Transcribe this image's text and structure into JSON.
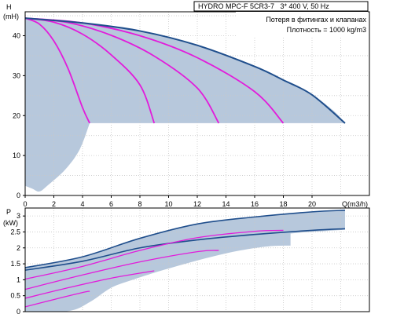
{
  "chart_data": [
    {
      "type": "line",
      "title": "HYDRO MPC-F 5CR3-7   3* 400 V, 50 Hz",
      "notes": [
        "Потеря в фитингах и клапанах",
        "Плотность = 1000 kg/m3"
      ],
      "ylabel": "H",
      "yunit": "(mH)",
      "xlabel": "Q(m3/h)",
      "xlim": [
        0,
        24
      ],
      "ylim": [
        0,
        46
      ],
      "xticks": [
        0,
        2,
        4,
        6,
        8,
        10,
        12,
        14,
        16,
        18,
        20
      ],
      "yticks": [
        0,
        10,
        20,
        30,
        40
      ],
      "grid": true,
      "colors": {
        "envelope_fill": "#b7c8dc",
        "max_curve": "#1f4e8c",
        "pump_curves": "#e21cdb"
      },
      "envelope": {
        "upper": [
          [
            0,
            44.4
          ],
          [
            4,
            43.2
          ],
          [
            8,
            41.2
          ],
          [
            12,
            37.6
          ],
          [
            16,
            32.3
          ],
          [
            18,
            28.9
          ],
          [
            20,
            25.2
          ],
          [
            21.5,
            21.2
          ],
          [
            22.3,
            18.1
          ]
        ],
        "lower": [
          [
            0,
            2.4
          ],
          [
            0.5,
            1.7
          ],
          [
            1,
            1.0
          ],
          [
            1.6,
            2.6
          ],
          [
            2.8,
            6.5
          ],
          [
            3.8,
            11.5
          ],
          [
            4.5,
            18.1
          ]
        ],
        "min_head": 18.1
      },
      "series": [
        {
          "x": [
            0,
            1,
            2,
            3,
            4,
            4.5
          ],
          "values": [
            44.4,
            42.9,
            38.7,
            31.7,
            22.0,
            18.1
          ]
        },
        {
          "x": [
            0,
            2,
            4,
            6,
            8,
            9
          ],
          "values": [
            44.4,
            43.4,
            40.4,
            35.2,
            27.7,
            18.1
          ]
        },
        {
          "x": [
            0,
            3,
            6,
            9,
            12,
            13.5
          ],
          "values": [
            44.4,
            43.3,
            40.1,
            34.9,
            26.9,
            18.1
          ]
        },
        {
          "x": [
            0,
            4,
            8,
            12,
            16,
            18
          ],
          "values": [
            44.4,
            43.2,
            40.0,
            34.5,
            26.0,
            18.1
          ]
        },
        {
          "x": [
            0,
            4,
            8,
            12,
            16,
            18,
            20,
            22.3
          ],
          "values": [
            44.4,
            43.2,
            41.2,
            37.6,
            32.3,
            28.9,
            25.2,
            18.1
          ]
        }
      ]
    },
    {
      "type": "line",
      "ylabel": "P",
      "yunit": "(kW)",
      "xlim": [
        0,
        24
      ],
      "ylim": [
        0,
        3.25
      ],
      "yticks": [
        0,
        0.5,
        1,
        1.5,
        2,
        2.5,
        3
      ],
      "grid": true,
      "bands": [
        {
          "upper": [
            [
              0,
              1.38
            ],
            [
              2,
              1.53
            ],
            [
              4,
              1.72
            ],
            [
              6,
              1.98
            ],
            [
              8,
              2.3
            ],
            [
              10,
              2.55
            ],
            [
              12,
              2.75
            ],
            [
              14,
              2.87
            ],
            [
              16,
              2.97
            ],
            [
              18,
              3.05
            ],
            [
              20,
              3.13
            ],
            [
              22,
              3.17
            ],
            [
              22.3,
              3.18
            ]
          ],
          "lower": [
            [
              0,
              0.02
            ],
            [
              1,
              0.02
            ],
            [
              2.5,
              0.1
            ],
            [
              4,
              0.5
            ],
            [
              5.5,
              1.02
            ],
            [
              7,
              1.3
            ],
            [
              9,
              1.55
            ],
            [
              11,
              1.82
            ],
            [
              13,
              2.05
            ],
            [
              15,
              2.23
            ],
            [
              17,
              2.37
            ],
            [
              19,
              2.47
            ],
            [
              21,
              2.53
            ],
            [
              22.3,
              2.57
            ]
          ]
        },
        {
          "upper": [
            [
              0,
              1.02
            ],
            [
              2,
              1.2
            ],
            [
              4,
              1.42
            ],
            [
              6,
              1.66
            ],
            [
              8,
              1.92
            ],
            [
              10,
              2.15
            ],
            [
              12,
              2.32
            ],
            [
              14,
              2.44
            ],
            [
              16,
              2.52
            ],
            [
              18,
              2.55
            ],
            [
              18.5,
              2.55
            ]
          ],
          "lower": [
            [
              0,
              0.02
            ],
            [
              3,
              0.02
            ],
            [
              4.5,
              0.3
            ],
            [
              6,
              0.75
            ],
            [
              7.5,
              1.0
            ],
            [
              9,
              1.22
            ],
            [
              11,
              1.48
            ],
            [
              13,
              1.72
            ],
            [
              15,
              1.92
            ],
            [
              17,
              2.05
            ],
            [
              18.5,
              2.07
            ]
          ]
        }
      ],
      "series": [
        {
          "x": [
            0,
            4,
            8,
            12,
            16,
            20,
            22.3
          ],
          "values": [
            1.38,
            1.72,
            2.3,
            2.75,
            2.97,
            3.13,
            3.18
          ]
        },
        {
          "x": [
            0,
            4,
            8,
            12,
            16,
            20,
            22.3
          ],
          "values": [
            1.3,
            1.58,
            2.0,
            2.25,
            2.42,
            2.55,
            2.6
          ]
        },
        {
          "x": [
            0,
            4,
            8,
            12,
            16,
            18
          ],
          "values": [
            1.02,
            1.42,
            1.92,
            2.32,
            2.52,
            2.55
          ]
        },
        {
          "x": [
            0,
            4,
            8,
            12,
            13.5
          ],
          "values": [
            0.7,
            1.15,
            1.56,
            1.88,
            1.92
          ]
        },
        {
          "x": [
            0,
            3,
            6,
            9
          ],
          "values": [
            0.42,
            0.75,
            1.05,
            1.28
          ]
        },
        {
          "x": [
            0,
            2,
            4,
            4.5
          ],
          "values": [
            0.15,
            0.38,
            0.6,
            0.64
          ]
        }
      ]
    }
  ]
}
